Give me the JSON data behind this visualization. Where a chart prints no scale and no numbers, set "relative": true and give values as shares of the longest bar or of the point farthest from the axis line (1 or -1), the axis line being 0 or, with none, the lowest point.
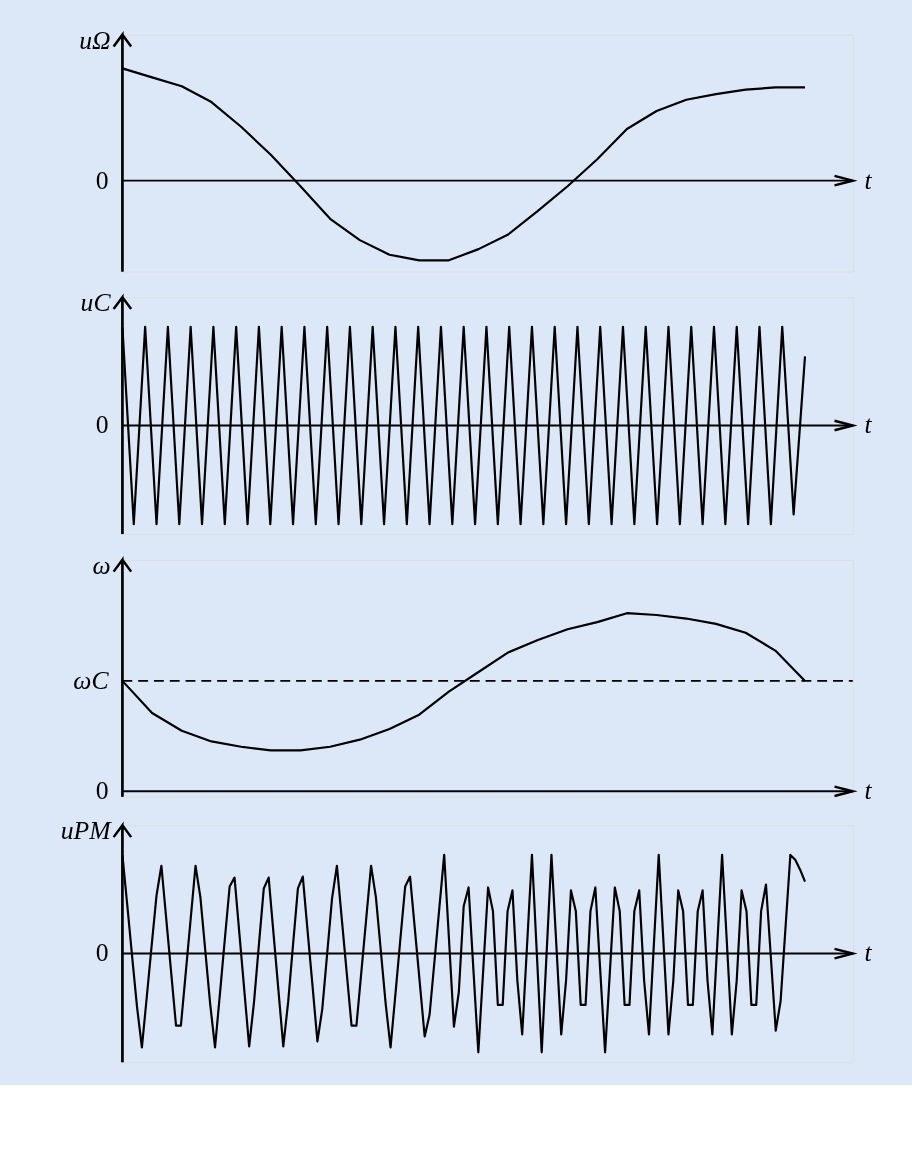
{
  "chart_data": [
    {
      "type": "line",
      "ylabel": "uΩ",
      "xlabel": "t",
      "relative": true,
      "categories": [
        null,
        null,
        null,
        null,
        null,
        null,
        null,
        null,
        null,
        null,
        null,
        null,
        null,
        null,
        null,
        null,
        null,
        null,
        null,
        null,
        null,
        null,
        null,
        null
      ],
      "series": [
        {
          "color": "#000000",
          "values": [
            1.0,
            0.92,
            0.84,
            0.7,
            0.48,
            0.23,
            -0.05,
            -0.34,
            -0.53,
            -0.66,
            -0.71,
            -0.71,
            -0.61,
            -0.48,
            -0.27,
            -0.05,
            0.19,
            0.46,
            0.62,
            0.72,
            0.77,
            0.81,
            0.83,
            0.83
          ]
        }
      ],
      "ref_lines": [
        {
          "axis": "y",
          "value": 0,
          "label": "0"
        }
      ]
    },
    {
      "type": "line",
      "ylabel": "uC",
      "xlabel": "t",
      "relative": true,
      "categories": [
        null,
        null,
        null,
        null,
        null,
        null,
        null,
        null,
        null,
        null,
        null,
        null,
        null,
        null,
        null,
        null,
        null,
        null,
        null,
        null,
        null,
        null,
        null,
        null,
        null,
        null,
        null,
        null,
        null,
        null,
        null,
        null,
        null,
        null,
        null,
        null,
        null,
        null,
        null,
        null,
        null,
        null,
        null,
        null,
        null,
        null,
        null,
        null,
        null,
        null,
        null,
        null,
        null,
        null,
        null,
        null,
        null,
        null,
        null,
        null,
        null
      ],
      "series": [
        {
          "color": "#000000",
          "values": [
            1,
            -1,
            1,
            -1,
            1,
            -1,
            1,
            -1,
            1,
            -1,
            1,
            -1,
            1,
            -1,
            1,
            -1,
            1,
            -1,
            1,
            -1,
            1,
            -1,
            1,
            -1,
            1,
            -1,
            1,
            -1,
            1,
            -1,
            1,
            -1,
            1,
            -1,
            1,
            -1,
            1,
            -1,
            1,
            -1,
            1,
            -1,
            1,
            -1,
            1,
            -1,
            1,
            -1,
            1,
            -1,
            1,
            -1,
            1,
            -1,
            1,
            -1,
            1,
            -1,
            1,
            -0.9,
            0.7
          ]
        }
      ],
      "ref_lines": [
        {
          "axis": "y",
          "value": 0,
          "label": "0"
        }
      ]
    },
    {
      "type": "line",
      "ylabel": "ω",
      "xlabel": "t",
      "relative": true,
      "categories": [
        null,
        null,
        null,
        null,
        null,
        null,
        null,
        null,
        null,
        null,
        null,
        null,
        null,
        null,
        null,
        null,
        null,
        null,
        null,
        null,
        null,
        null,
        null,
        null
      ],
      "series": [
        {
          "color": "#000000",
          "values": [
            0.62,
            0.44,
            0.34,
            0.28,
            0.25,
            0.23,
            0.23,
            0.25,
            0.29,
            0.35,
            0.43,
            0.56,
            0.67,
            0.78,
            0.85,
            0.91,
            0.95,
            1.0,
            0.99,
            0.97,
            0.94,
            0.89,
            0.79,
            0.62
          ]
        }
      ],
      "ref_lines": [
        {
          "axis": "y",
          "value": 0,
          "label": "0"
        },
        {
          "axis": "y",
          "value": 0.62,
          "label": "ωC",
          "line_style": "dashed"
        }
      ]
    },
    {
      "type": "line",
      "ylabel": "uPM",
      "xlabel": "t",
      "relative": true,
      "categories": [
        null,
        null,
        null,
        null,
        null,
        null,
        null,
        null,
        null,
        null,
        null,
        null,
        null,
        null,
        null,
        null,
        null,
        null,
        null,
        null,
        null,
        null,
        null,
        null,
        null,
        null,
        null,
        null,
        null,
        null,
        null,
        null,
        null,
        null,
        null,
        null,
        null,
        null,
        null,
        null,
        null,
        null,
        null,
        null,
        null,
        null,
        null,
        null,
        null,
        null,
        null,
        null,
        null,
        null,
        null,
        null,
        null,
        null,
        null,
        null,
        null,
        null,
        null,
        null,
        null,
        null,
        null,
        null,
        null,
        null,
        null,
        null,
        null,
        null,
        null,
        null,
        null,
        null,
        null,
        null,
        null,
        null,
        null,
        null,
        null,
        null,
        null,
        null,
        null,
        null,
        null,
        null,
        null,
        null,
        null,
        null,
        null,
        null,
        null,
        null,
        null,
        null,
        null,
        null,
        null,
        null,
        null,
        null,
        null,
        null,
        null,
        null,
        null,
        null,
        null,
        null,
        null,
        null,
        null,
        null,
        null,
        null,
        null,
        null,
        null,
        null,
        null,
        null,
        null,
        null,
        null,
        null,
        null,
        null,
        null,
        null,
        null,
        null,
        null,
        null,
        null
      ],
      "series": [
        {
          "color": "#000000",
          "values": [
            1,
            0.49,
            -0.03,
            -0.54,
            -0.95,
            -0.44,
            0.08,
            0.59,
            0.89,
            0.35,
            -0.19,
            -0.73,
            -0.73,
            -0.19,
            0.35,
            0.89,
            0.57,
            0.03,
            -0.51,
            -0.95,
            -0.41,
            0.14,
            0.68,
            0.77,
            0.2,
            -0.37,
            -0.94,
            -0.49,
            0.09,
            0.66,
            0.77,
            0.2,
            -0.37,
            -0.94,
            -0.49,
            0.09,
            0.66,
            0.78,
            0.22,
            -0.33,
            -0.89,
            -0.56,
            0,
            0.56,
            0.89,
            0.35,
            -0.19,
            -0.73,
            -0.73,
            -0.19,
            0.35,
            0.89,
            0.57,
            0.03,
            -0.51,
            -0.95,
            -0.41,
            0.14,
            0.68,
            0.78,
            0.24,
            -0.3,
            -0.84,
            -0.62,
            -0.08,
            0.46,
            1,
            0.13,
            -0.74,
            -0.39,
            0.48,
            0.67,
            -0.17,
            -1,
            -0.17,
            0.67,
            0.43,
            -0.52,
            -0.52,
            0.43,
            0.64,
            -0.27,
            -0.82,
            0.09,
            1,
            0,
            -1,
            0,
            1,
            0.09,
            -0.82,
            -0.27,
            0.64,
            0.43,
            -0.52,
            -0.52,
            0.43,
            0.67,
            -0.17,
            -1,
            -0.17,
            0.67,
            0.43,
            -0.52,
            -0.52,
            0.43,
            0.64,
            -0.27,
            -0.82,
            0.09,
            1,
            0.09,
            -0.82,
            -0.27,
            0.64,
            0.43,
            -0.52,
            -0.52,
            0.43,
            0.64,
            -0.27,
            -0.82,
            0.09,
            1,
            0.09,
            -0.82,
            -0.27,
            0.64,
            0.43,
            -0.52,
            -0.52,
            0.43,
            0.7,
            -0.04,
            -0.78,
            -0.48,
            0.26,
            1,
            0.95,
            0.85,
            0.73
          ]
        }
      ],
      "ref_lines": [
        {
          "axis": "y",
          "value": 0,
          "label": "0"
        }
      ]
    }
  ]
}
